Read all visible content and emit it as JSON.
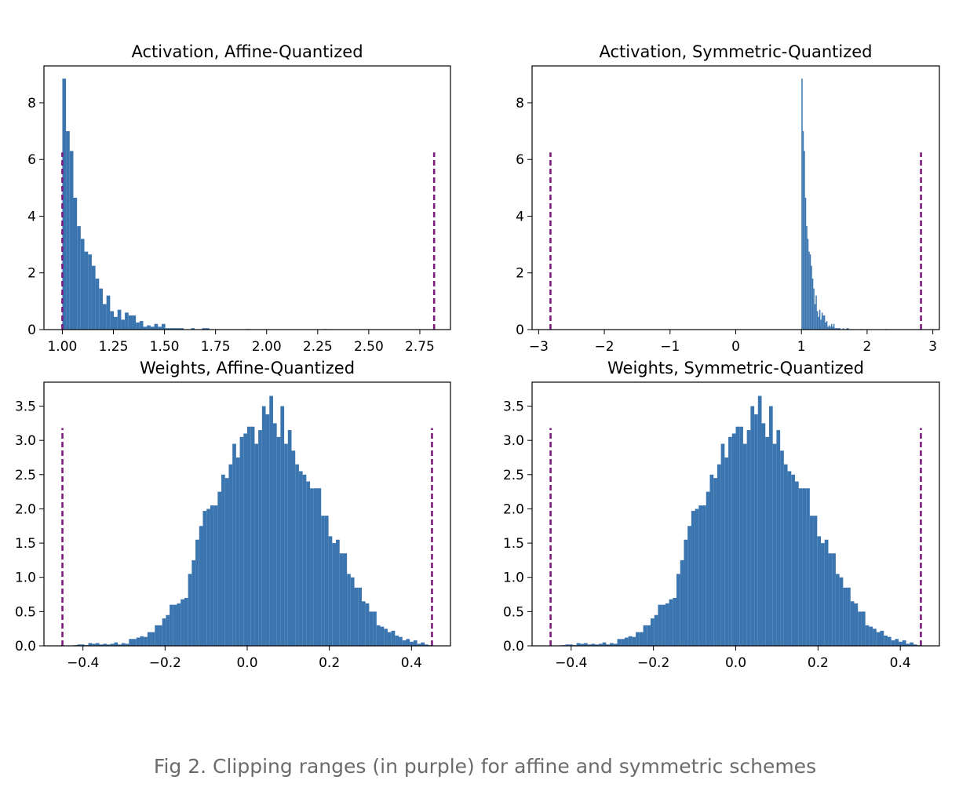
{
  "caption": "Fig 2. Clipping ranges (in purple) for affine and symmetric schemes",
  "colors": {
    "bars": "#3b75af",
    "clip": "#7b1c7d",
    "axes": "#000000"
  },
  "chart_data": [
    {
      "type": "bar",
      "title": "Activation, Affine-Quantized",
      "xlim": [
        0.91,
        2.9
      ],
      "ylim": [
        0,
        9.3
      ],
      "xticks": [
        1.0,
        1.25,
        1.5,
        1.75,
        2.0,
        2.25,
        2.5,
        2.75
      ],
      "xtick_labels": [
        "1.00",
        "1.25",
        "1.50",
        "1.75",
        "2.00",
        "2.25",
        "2.50",
        "2.75"
      ],
      "yticks": [
        0,
        2,
        4,
        6,
        8
      ],
      "ytick_labels": [
        "0",
        "2",
        "4",
        "6",
        "8"
      ],
      "clip_lines": [
        1.0,
        2.82
      ],
      "clip_height": 6.25,
      "bin_start": 1.0,
      "bin_width": 0.018,
      "values": [
        8.85,
        7.0,
        6.3,
        4.65,
        3.65,
        3.2,
        2.75,
        2.65,
        2.25,
        1.8,
        1.45,
        0.9,
        1.2,
        0.65,
        0.45,
        0.7,
        0.35,
        0.6,
        0.5,
        0.5,
        0.25,
        0.3,
        0.1,
        0.15,
        0.1,
        0.2,
        0.1,
        0.2,
        0.05,
        0.05,
        0.05,
        0.05,
        0.05,
        0.0,
        0.0,
        0.05,
        0.0,
        0.0,
        0.05,
        0.05,
        0.0,
        0.0,
        0.0,
        0.0,
        0.0,
        0.0,
        0.0,
        0.0,
        0.0,
        0.0,
        0.02,
        0.0,
        0.0,
        0.0,
        0.0,
        0.0,
        0.0,
        0.0,
        0.0,
        0.0,
        0.0,
        0.0,
        0.0,
        0.0,
        0.0,
        0.0,
        0.0,
        0.0,
        0.0,
        0.0,
        0.0,
        0.02
      ]
    },
    {
      "type": "bar",
      "title": "Activation, Symmetric-Quantized",
      "xlim": [
        -3.1,
        3.1
      ],
      "ylim": [
        0,
        9.3
      ],
      "xticks": [
        -3,
        -2,
        -1,
        0,
        1,
        2,
        3
      ],
      "xtick_labels": [
        "−3",
        "−2",
        "−1",
        "0",
        "1",
        "2",
        "3"
      ],
      "yticks": [
        0,
        2,
        4,
        6,
        8
      ],
      "ytick_labels": [
        "0",
        "2",
        "4",
        "6",
        "8"
      ],
      "clip_lines": [
        -2.82,
        2.82
      ],
      "clip_height": 6.25,
      "bin_start": 1.0,
      "bin_width": 0.018,
      "values": [
        8.85,
        7.0,
        6.3,
        4.65,
        3.65,
        3.2,
        2.75,
        2.65,
        2.25,
        1.8,
        1.45,
        0.9,
        1.2,
        0.65,
        0.45,
        0.7,
        0.35,
        0.6,
        0.5,
        0.5,
        0.25,
        0.3,
        0.1,
        0.15,
        0.1,
        0.2,
        0.1,
        0.2,
        0.05,
        0.05,
        0.05,
        0.05,
        0.05,
        0.0,
        0.0,
        0.05,
        0.0,
        0.0,
        0.05,
        0.05,
        0.0,
        0.0,
        0.0,
        0.0,
        0.0,
        0.0,
        0.0,
        0.0,
        0.0,
        0.0,
        0.02,
        0.0,
        0.0,
        0.0,
        0.0,
        0.0,
        0.0,
        0.0,
        0.0,
        0.0,
        0.0,
        0.0,
        0.0,
        0.0,
        0.0,
        0.0,
        0.0,
        0.0,
        0.0,
        0.0,
        0.0,
        0.02
      ]
    },
    {
      "type": "bar",
      "title": "Weights, Affine-Quantized",
      "xlim": [
        -0.495,
        0.495
      ],
      "ylim": [
        0,
        3.85
      ],
      "xticks": [
        -0.4,
        -0.2,
        0.0,
        0.2,
        0.4
      ],
      "xtick_labels": [
        "−0.4",
        "−0.2",
        "0.0",
        "0.2",
        "0.4"
      ],
      "yticks": [
        0,
        0.5,
        1.0,
        1.5,
        2.0,
        2.5,
        3.0,
        3.5
      ],
      "ytick_labels": [
        "0.0",
        "0.5",
        "1.0",
        "1.5",
        "2.0",
        "2.5",
        "3.0",
        "3.5"
      ],
      "clip_lines": [
        -0.45,
        0.45
      ],
      "clip_height": 3.18,
      "bin_start": -0.45,
      "bin_width": 0.009,
      "values": [
        0.0,
        0.0,
        0.0,
        0.01,
        0.02,
        0.02,
        0.01,
        0.04,
        0.03,
        0.04,
        0.02,
        0.03,
        0.02,
        0.03,
        0.05,
        0.02,
        0.04,
        0.03,
        0.1,
        0.1,
        0.12,
        0.14,
        0.13,
        0.2,
        0.2,
        0.3,
        0.3,
        0.4,
        0.45,
        0.6,
        0.6,
        0.62,
        0.68,
        0.7,
        1.05,
        1.25,
        1.55,
        1.75,
        1.97,
        2.0,
        2.05,
        2.05,
        2.25,
        2.5,
        2.45,
        2.65,
        2.95,
        2.75,
        3.05,
        3.1,
        3.2,
        3.2,
        2.95,
        3.15,
        3.5,
        3.38,
        3.65,
        3.25,
        3.05,
        3.5,
        2.95,
        3.15,
        2.85,
        2.65,
        2.55,
        2.5,
        2.4,
        2.3,
        2.3,
        2.3,
        1.9,
        1.9,
        1.6,
        1.5,
        1.55,
        1.35,
        1.35,
        1.05,
        1.0,
        0.85,
        0.85,
        0.65,
        0.62,
        0.5,
        0.5,
        0.3,
        0.28,
        0.25,
        0.2,
        0.22,
        0.15,
        0.13,
        0.08,
        0.1,
        0.06,
        0.08,
        0.03,
        0.05,
        0.02,
        0.01
      ]
    },
    {
      "type": "bar",
      "title": "Weights, Symmetric-Quantized",
      "xlim": [
        -0.495,
        0.495
      ],
      "ylim": [
        0,
        3.85
      ],
      "xticks": [
        -0.4,
        -0.2,
        0.0,
        0.2,
        0.4
      ],
      "xtick_labels": [
        "−0.4",
        "−0.2",
        "0.0",
        "0.2",
        "0.4"
      ],
      "yticks": [
        0,
        0.5,
        1.0,
        1.5,
        2.0,
        2.5,
        3.0,
        3.5
      ],
      "ytick_labels": [
        "0.0",
        "0.5",
        "1.0",
        "1.5",
        "2.0",
        "2.5",
        "3.0",
        "3.5"
      ],
      "clip_lines": [
        -0.45,
        0.45
      ],
      "clip_height": 3.18,
      "bin_start": -0.45,
      "bin_width": 0.009,
      "values": [
        0.0,
        0.0,
        0.0,
        0.01,
        0.02,
        0.02,
        0.01,
        0.04,
        0.03,
        0.04,
        0.02,
        0.03,
        0.02,
        0.03,
        0.05,
        0.02,
        0.04,
        0.03,
        0.1,
        0.1,
        0.12,
        0.14,
        0.13,
        0.2,
        0.2,
        0.3,
        0.3,
        0.4,
        0.45,
        0.6,
        0.6,
        0.62,
        0.68,
        0.7,
        1.05,
        1.25,
        1.55,
        1.75,
        1.97,
        2.0,
        2.05,
        2.05,
        2.25,
        2.5,
        2.45,
        2.65,
        2.95,
        2.75,
        3.05,
        3.1,
        3.2,
        3.2,
        2.95,
        3.15,
        3.5,
        3.38,
        3.65,
        3.25,
        3.05,
        3.5,
        2.95,
        3.15,
        2.85,
        2.65,
        2.55,
        2.5,
        2.4,
        2.3,
        2.3,
        2.3,
        1.9,
        1.9,
        1.6,
        1.5,
        1.55,
        1.35,
        1.35,
        1.05,
        1.0,
        0.85,
        0.85,
        0.65,
        0.62,
        0.5,
        0.5,
        0.3,
        0.28,
        0.25,
        0.2,
        0.22,
        0.15,
        0.13,
        0.08,
        0.1,
        0.06,
        0.08,
        0.03,
        0.05,
        0.02,
        0.01
      ]
    }
  ]
}
